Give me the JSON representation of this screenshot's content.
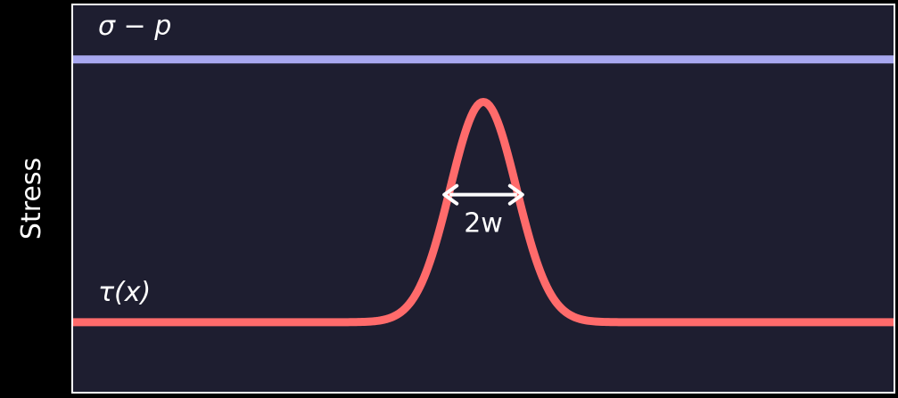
{
  "chart_data": {
    "type": "line",
    "title": "",
    "xlabel": "",
    "ylabel": "Stress",
    "grid": false,
    "legend": "none",
    "series": [
      {
        "name": "σ − p",
        "kind": "constant",
        "value": 0.86,
        "color": "#a8a8f0"
      },
      {
        "name": "τ(x)",
        "kind": "gaussian",
        "baseline": 0.18,
        "peak": 0.75,
        "center": 0,
        "sigma": 0.85,
        "color": "#ff6b6b"
      }
    ],
    "xlim": [
      -10.5,
      10.5
    ],
    "ylim": [
      0,
      1
    ],
    "annotation": {
      "text": "2w",
      "span": [
        -1.0,
        1.0
      ],
      "y": 0.51
    }
  },
  "colors": {
    "background": "#000000",
    "plot_background": "#1e1e30",
    "frame": "#ffffff",
    "text": "#ffffff",
    "arrow": "#ffffff"
  }
}
